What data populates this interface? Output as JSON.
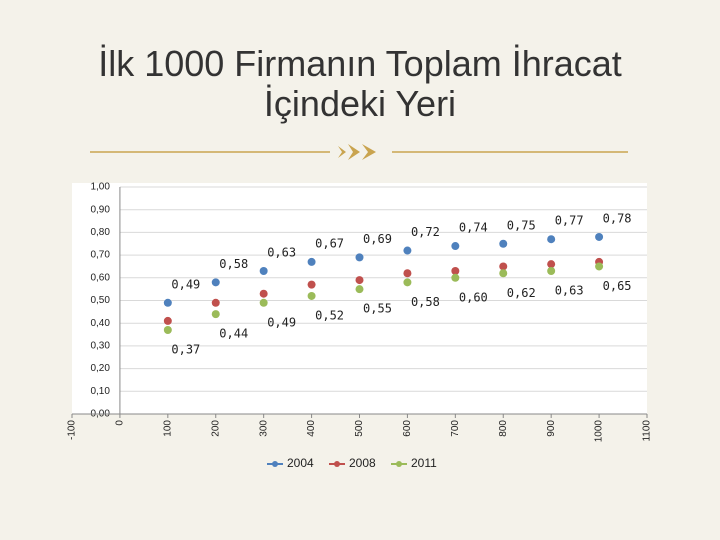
{
  "chart_data": {
    "type": "scatter",
    "title": "İlk 1000 Firmanın Toplam İhracat İçindeki Yeri",
    "x": [
      100,
      200,
      300,
      400,
      500,
      600,
      700,
      800,
      900,
      1000
    ],
    "series": [
      {
        "name": "2004",
        "color": "#4f81bd",
        "values": [
          0.49,
          0.58,
          0.63,
          0.67,
          0.69,
          0.72,
          0.74,
          0.75,
          0.77,
          0.78
        ],
        "value_labels": [
          "0,49",
          "0,58",
          "0,63",
          "0,67",
          "0,69",
          "0,72",
          "0,74",
          "0,75",
          "0,77",
          "0,78"
        ]
      },
      {
        "name": "2008",
        "color": "#c0504d",
        "values": [
          0.41,
          0.49,
          0.53,
          0.57,
          0.59,
          0.62,
          0.63,
          0.65,
          0.66,
          0.67
        ]
      },
      {
        "name": "2011",
        "color": "#9bbb59",
        "values": [
          0.37,
          0.44,
          0.49,
          0.52,
          0.55,
          0.58,
          0.6,
          0.62,
          0.63,
          0.65
        ],
        "value_labels": [
          "0,37",
          "0,44",
          "0,49",
          "0,52",
          "0,55",
          "0,58",
          "0,60",
          "0,62",
          "0,63",
          "0,65"
        ]
      }
    ],
    "xlim": [
      -100,
      1100
    ],
    "xticks": [
      -100,
      0,
      100,
      200,
      300,
      400,
      500,
      600,
      700,
      800,
      900,
      1000,
      1100
    ],
    "ylim": [
      0,
      1
    ],
    "yticks": [
      {
        "value": 0,
        "label": "0,00"
      },
      {
        "value": 0.1,
        "label": "0,10"
      },
      {
        "value": 0.2,
        "label": "0,20"
      },
      {
        "value": 0.3,
        "label": "0,30"
      },
      {
        "value": 0.4,
        "label": "0,40"
      },
      {
        "value": 0.5,
        "label": "0,50"
      },
      {
        "value": 0.6,
        "label": "0,60"
      },
      {
        "value": 0.7,
        "label": "0,70"
      },
      {
        "value": 0.8,
        "label": "0,80"
      },
      {
        "value": 0.9,
        "label": "0,90"
      },
      {
        "value": 1,
        "label": "1,00"
      }
    ],
    "grid": true,
    "legend": "bottom"
  }
}
